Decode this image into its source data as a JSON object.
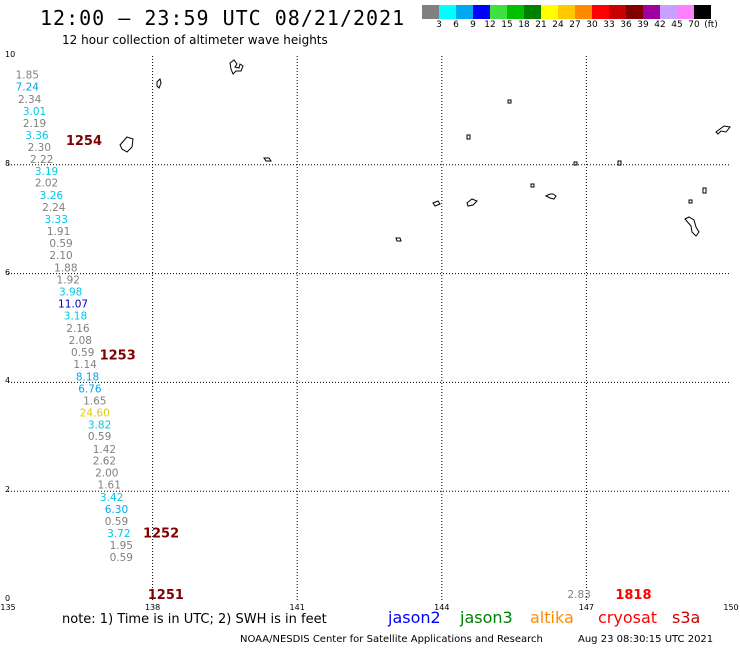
{
  "header": {
    "title": "12:00 — 23:59 UTC 08/21/2021",
    "subtitle": "12 hour collection of altimeter wave heights"
  },
  "colorbar": {
    "swatches": [
      "#808080",
      "#00ffff",
      "#00a8f0",
      "#0000ff",
      "#40e040",
      "#00c000",
      "#008000",
      "#ffff00",
      "#ffc800",
      "#ff8c00",
      "#ff0000",
      "#c80000",
      "#800000",
      "#a000a0",
      "#c8a0ff",
      "#ff80ff",
      "#000000"
    ],
    "labels": [
      "3",
      "6",
      "9",
      "12",
      "15",
      "18",
      "21",
      "24",
      "27",
      "30",
      "33",
      "36",
      "39",
      "42",
      "45",
      "70",
      "(ft)"
    ]
  },
  "axes": {
    "x_ticks": [
      "135",
      "138",
      "141",
      "144",
      "147",
      "150"
    ],
    "y_ticks": [
      "0",
      "2",
      "4",
      "6",
      "8",
      "10"
    ],
    "xlim": [
      135,
      150
    ],
    "ylim": [
      0,
      10
    ]
  },
  "track_labels": [
    {
      "text": "1254",
      "lon": 136.2,
      "lat": 8.35
    },
    {
      "text": "1253",
      "lon": 136.9,
      "lat": 4.4
    },
    {
      "text": "1252",
      "lon": 137.8,
      "lat": 1.13
    },
    {
      "text": "1251",
      "lon": 137.9,
      "lat": 0.0
    },
    {
      "text": "1818",
      "lon": 147.6,
      "lat": 0.0
    }
  ],
  "swh_readings": [
    {
      "value": "1.85",
      "lon": 135.4,
      "lat": 9.55,
      "color": "#808080"
    },
    {
      "value": "7.24",
      "lon": 135.4,
      "lat": 9.33,
      "color": "#00a8f0"
    },
    {
      "value": "2.34",
      "lon": 135.45,
      "lat": 9.1,
      "color": "#808080"
    },
    {
      "value": "3.01",
      "lon": 135.55,
      "lat": 8.88,
      "color": "#00c8e6"
    },
    {
      "value": "2.19",
      "lon": 135.55,
      "lat": 8.66,
      "color": "#808080"
    },
    {
      "value": "3.36",
      "lon": 135.6,
      "lat": 8.44,
      "color": "#00c8e6"
    },
    {
      "value": "2.30",
      "lon": 135.65,
      "lat": 8.22,
      "color": "#808080"
    },
    {
      "value": "2.22",
      "lon": 135.7,
      "lat": 8.0,
      "color": "#808080"
    },
    {
      "value": "3.19",
      "lon": 135.8,
      "lat": 7.78,
      "color": "#00c8e6"
    },
    {
      "value": "2.02",
      "lon": 135.8,
      "lat": 7.56,
      "color": "#808080"
    },
    {
      "value": "3.26",
      "lon": 135.9,
      "lat": 7.33,
      "color": "#00c8e6"
    },
    {
      "value": "2.24",
      "lon": 135.95,
      "lat": 7.11,
      "color": "#808080"
    },
    {
      "value": "3.33",
      "lon": 136.0,
      "lat": 6.89,
      "color": "#00c8e6"
    },
    {
      "value": "1.91",
      "lon": 136.05,
      "lat": 6.67,
      "color": "#808080"
    },
    {
      "value": "0.59",
      "lon": 136.1,
      "lat": 6.45,
      "color": "#808080"
    },
    {
      "value": "2.10",
      "lon": 136.1,
      "lat": 6.23,
      "color": "#808080"
    },
    {
      "value": "1.88",
      "lon": 136.2,
      "lat": 6.0,
      "color": "#808080"
    },
    {
      "value": "1.92",
      "lon": 136.25,
      "lat": 5.78,
      "color": "#808080"
    },
    {
      "value": "3.98",
      "lon": 136.3,
      "lat": 5.56,
      "color": "#00c8e6"
    },
    {
      "value": "11.07",
      "lon": 136.35,
      "lat": 5.34,
      "color": "#0000c8"
    },
    {
      "value": "3.18",
      "lon": 136.4,
      "lat": 5.12,
      "color": "#00c8e6"
    },
    {
      "value": "2.16",
      "lon": 136.45,
      "lat": 4.89,
      "color": "#808080"
    },
    {
      "value": "2.08",
      "lon": 136.5,
      "lat": 4.67,
      "color": "#808080"
    },
    {
      "value": "0.59",
      "lon": 136.55,
      "lat": 4.45,
      "color": "#808080"
    },
    {
      "value": "1.14",
      "lon": 136.6,
      "lat": 4.23,
      "color": "#808080"
    },
    {
      "value": "8.18",
      "lon": 136.65,
      "lat": 4.0,
      "color": "#00a8f0"
    },
    {
      "value": "6.76",
      "lon": 136.7,
      "lat": 3.78,
      "color": "#00a8f0"
    },
    {
      "value": "1.65",
      "lon": 136.8,
      "lat": 3.56,
      "color": "#808080"
    },
    {
      "value": "24.60",
      "lon": 136.8,
      "lat": 3.34,
      "color": "#e6c800"
    },
    {
      "value": "3.82",
      "lon": 136.9,
      "lat": 3.12,
      "color": "#00c8e6"
    },
    {
      "value": "0.59",
      "lon": 136.9,
      "lat": 2.9,
      "color": "#808080"
    },
    {
      "value": "1.42",
      "lon": 137.0,
      "lat": 2.67,
      "color": "#808080"
    },
    {
      "value": "2.62",
      "lon": 137.0,
      "lat": 2.45,
      "color": "#808080"
    },
    {
      "value": "2.00",
      "lon": 137.05,
      "lat": 2.23,
      "color": "#808080"
    },
    {
      "value": "1.61",
      "lon": 137.1,
      "lat": 2.01,
      "color": "#808080"
    },
    {
      "value": "3.42",
      "lon": 137.15,
      "lat": 1.78,
      "color": "#00c8e6"
    },
    {
      "value": "6.30",
      "lon": 137.25,
      "lat": 1.56,
      "color": "#00a8f0"
    },
    {
      "value": "0.59",
      "lon": 137.25,
      "lat": 1.34,
      "color": "#808080"
    },
    {
      "value": "3.72",
      "lon": 137.3,
      "lat": 1.12,
      "color": "#00c8e6"
    },
    {
      "value": "1.95",
      "lon": 137.35,
      "lat": 0.9,
      "color": "#808080"
    },
    {
      "value": "0.59",
      "lon": 137.35,
      "lat": 0.68,
      "color": "#808080"
    },
    {
      "value": "2.83",
      "lon": 146.85,
      "lat": 0.0,
      "color": "#808080"
    }
  ],
  "footer": {
    "note": "note:  1) Time is in UTC;  2) SWH is in feet",
    "satellites": [
      {
        "name": "jason2",
        "color": "#0000ff"
      },
      {
        "name": "jason3",
        "color": "#008000"
      },
      {
        "name": "altika",
        "color": "#ff8c00"
      },
      {
        "name": "cryosat",
        "color": "#ff0000"
      },
      {
        "name": "s3a",
        "color": "#c80000"
      }
    ],
    "credit": "NOAA/NESDIS Center for Satellite Applications and Research",
    "timestamp": "Aug 23 08:30:15 UTC 2021"
  }
}
